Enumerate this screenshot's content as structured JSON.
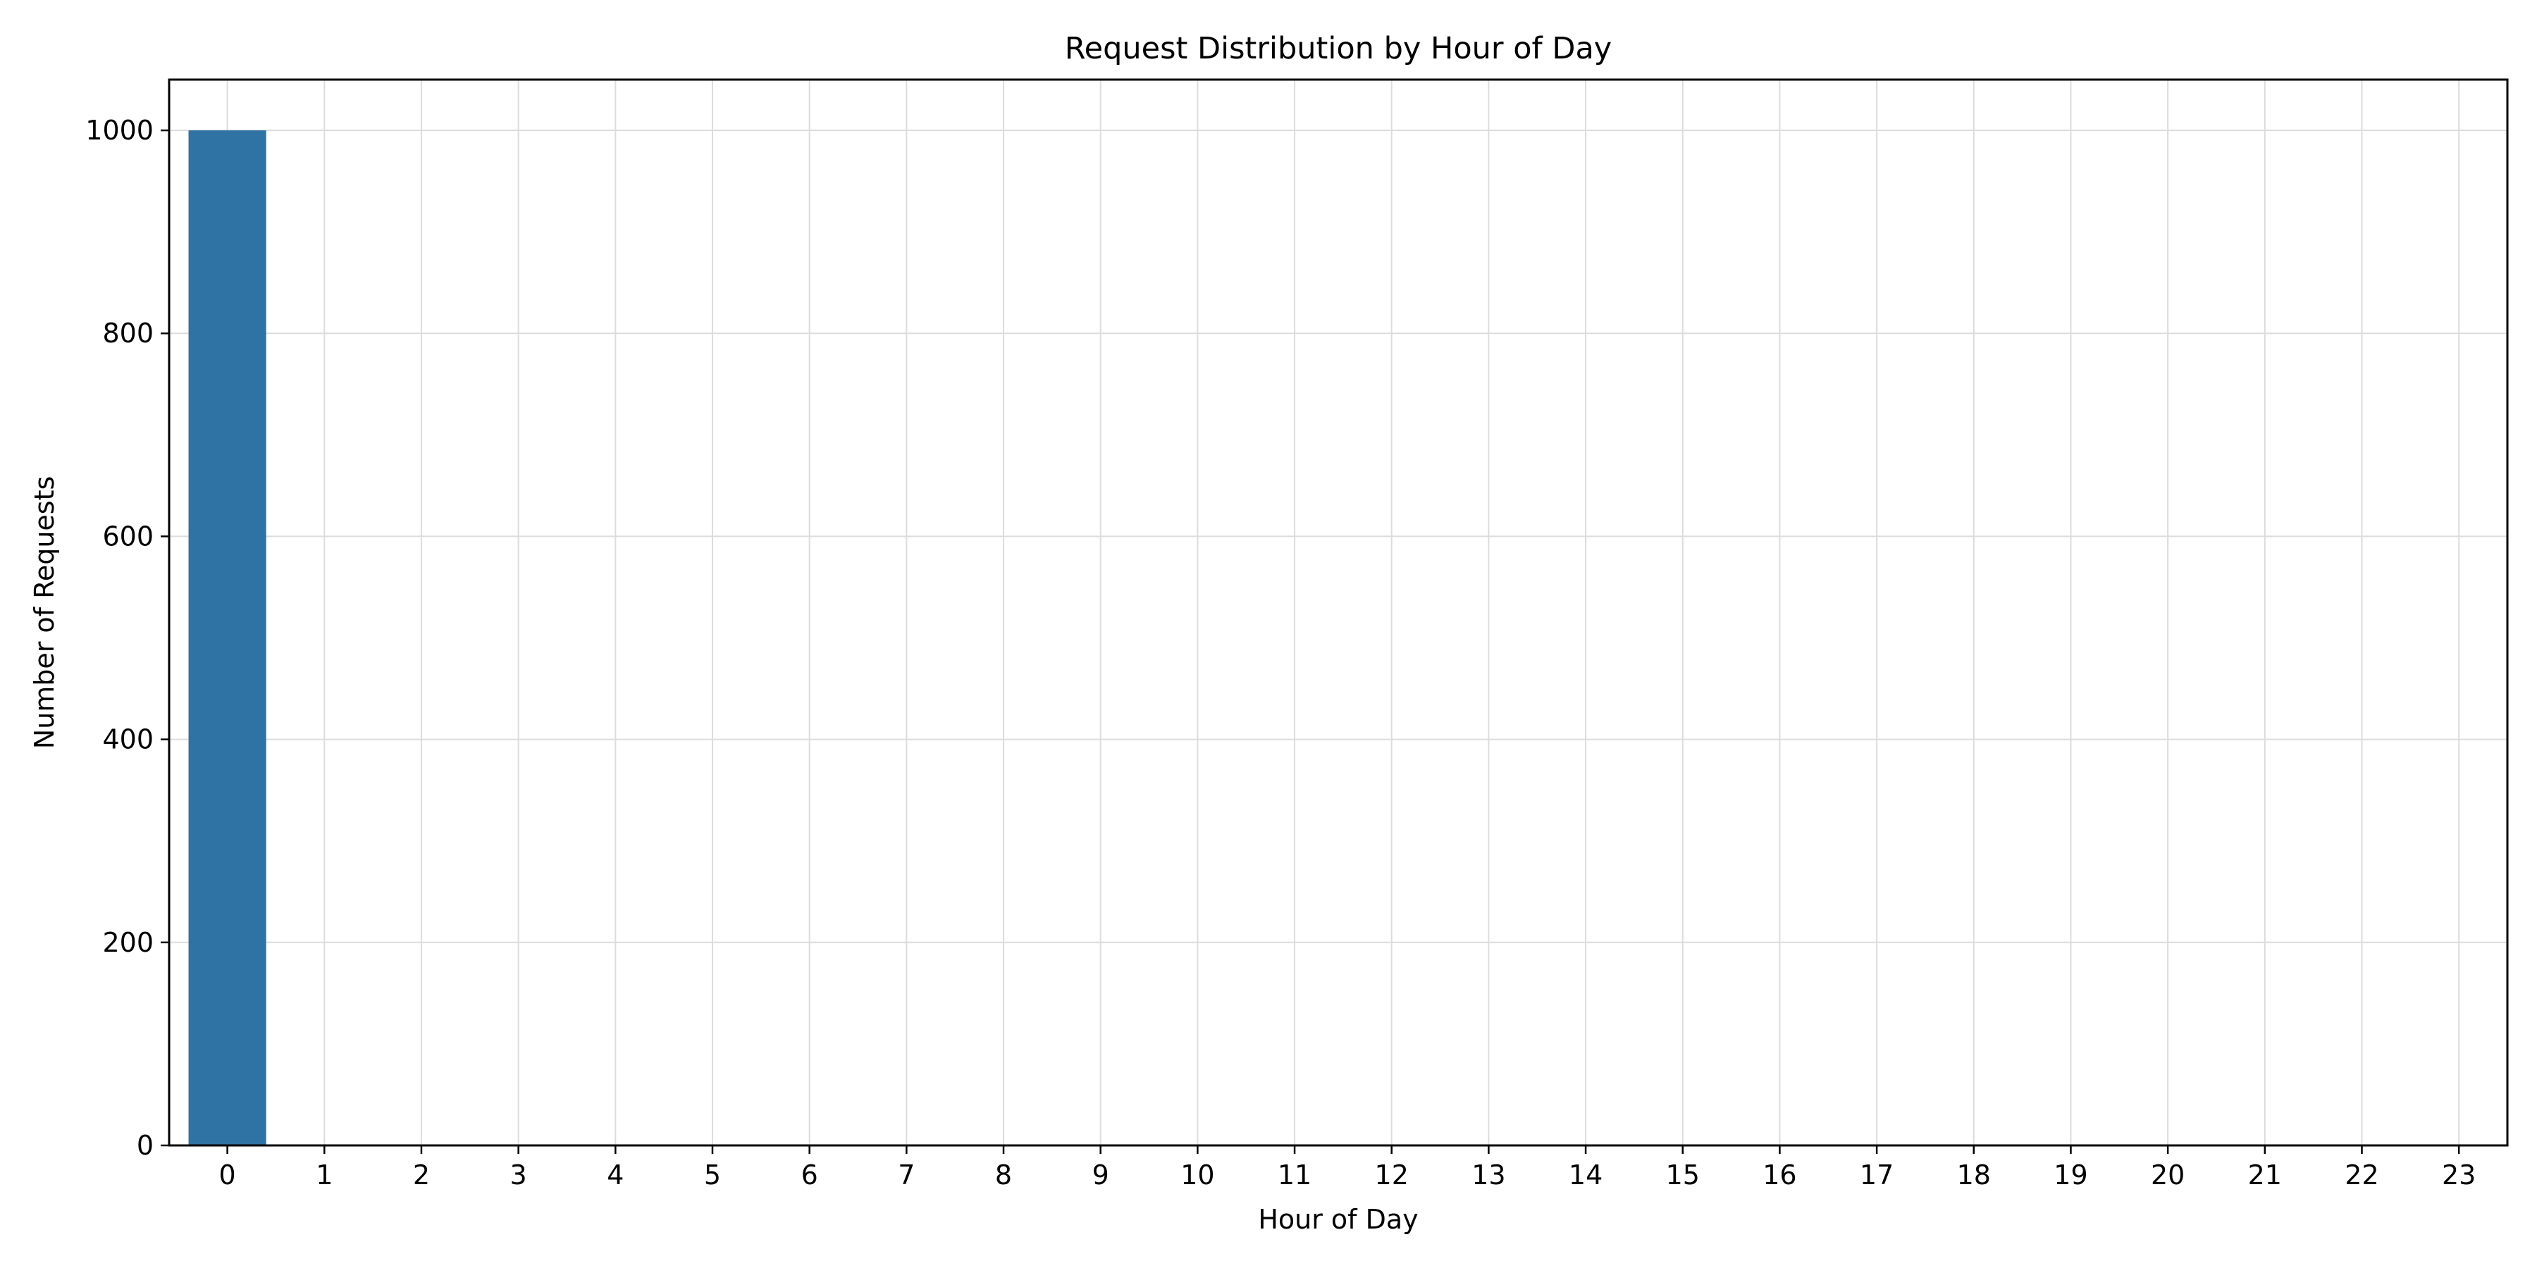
{
  "chart_data": {
    "type": "bar",
    "title": "Request Distribution by Hour of Day",
    "xlabel": "Hour of Day",
    "ylabel": "Number of Requests",
    "categories": [
      "0",
      "1",
      "2",
      "3",
      "4",
      "5",
      "6",
      "7",
      "8",
      "9",
      "10",
      "11",
      "12",
      "13",
      "14",
      "15",
      "16",
      "17",
      "18",
      "19",
      "20",
      "21",
      "22",
      "23"
    ],
    "values": [
      1000,
      0,
      0,
      0,
      0,
      0,
      0,
      0,
      0,
      0,
      0,
      0,
      0,
      0,
      0,
      0,
      0,
      0,
      0,
      0,
      0,
      0,
      0,
      0
    ],
    "ylim": [
      0,
      1050
    ],
    "yticks": [
      "0",
      "200",
      "400",
      "600",
      "800",
      "1000"
    ],
    "grid": true,
    "bar_color": "#2e73a3",
    "grid_color": "#dcdcdc"
  }
}
